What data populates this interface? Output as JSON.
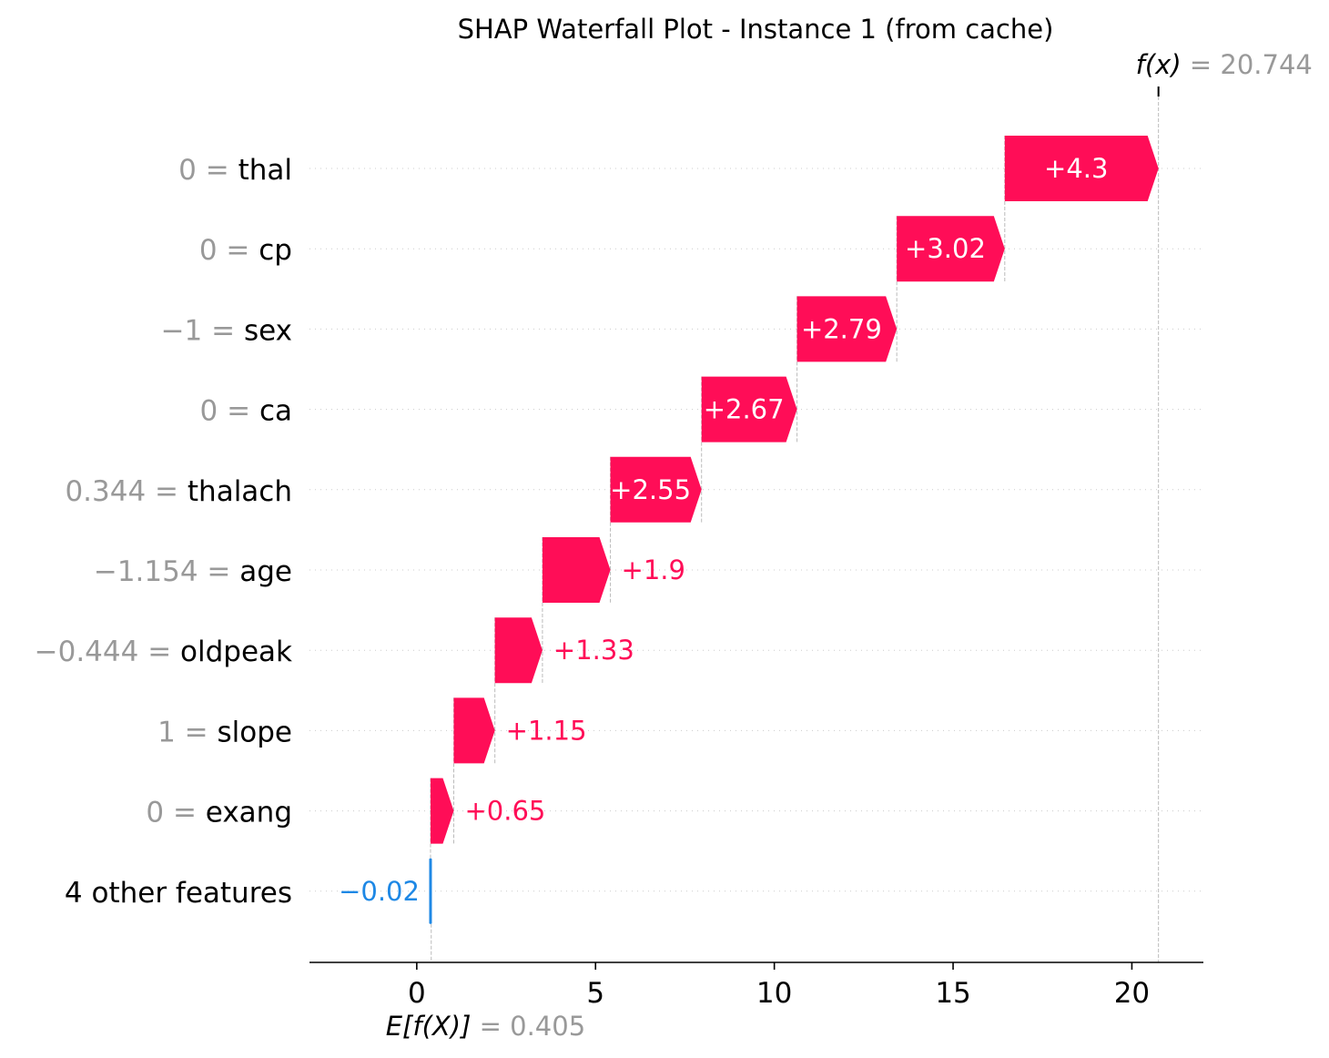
{
  "chart_data": {
    "type": "bar",
    "subtype": "shap-waterfall",
    "title": "SHAP Waterfall Plot - Instance 1 (from cache)",
    "base_value": 0.405,
    "output_value": 20.744,
    "base_label": {
      "symbol": "E[f(X)]",
      "eq": " = ",
      "value": "0.405"
    },
    "output_label": {
      "symbol": "f(x)",
      "eq": " = ",
      "value": "20.744"
    },
    "features": [
      {
        "value": "0",
        "name": "thal",
        "shap": 4.3,
        "label": "+4.3"
      },
      {
        "value": "0",
        "name": "cp",
        "shap": 3.02,
        "label": "+3.02"
      },
      {
        "value": "−1",
        "name": "sex",
        "shap": 2.79,
        "label": "+2.79"
      },
      {
        "value": "0",
        "name": "ca",
        "shap": 2.67,
        "label": "+2.67"
      },
      {
        "value": "0.344",
        "name": "thalach",
        "shap": 2.55,
        "label": "+2.55"
      },
      {
        "value": "−1.154",
        "name": "age",
        "shap": 1.9,
        "label": "+1.9"
      },
      {
        "value": "−0.444",
        "name": "oldpeak",
        "shap": 1.33,
        "label": "+1.33"
      },
      {
        "value": "1",
        "name": "slope",
        "shap": 1.15,
        "label": "+1.15"
      },
      {
        "value": "0",
        "name": "exang",
        "shap": 0.65,
        "label": "+0.65"
      },
      {
        "value": "",
        "name": "4 other features",
        "shap": -0.02,
        "label": "−0.02"
      }
    ],
    "xticks": [
      0,
      5,
      10,
      15,
      20
    ],
    "xlim": [
      -3,
      22
    ],
    "colors": {
      "positive": "#ff0d57",
      "negative": "#1e88e5",
      "muted": "#999999"
    }
  }
}
